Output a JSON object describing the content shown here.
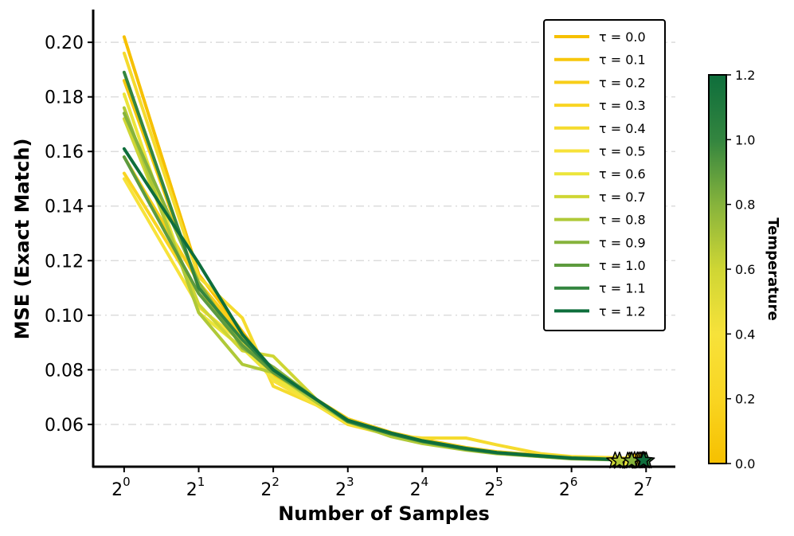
{
  "chart_data": {
    "type": "line",
    "xlabel": "Number of Samples",
    "ylabel": "MSE (Exact Match)",
    "x_scale": "log2",
    "x_ticks": [
      {
        "value": 1,
        "base": "2",
        "exp": "0"
      },
      {
        "value": 2,
        "base": "2",
        "exp": "1"
      },
      {
        "value": 4,
        "base": "2",
        "exp": "2"
      },
      {
        "value": 8,
        "base": "2",
        "exp": "3"
      },
      {
        "value": 16,
        "base": "2",
        "exp": "4"
      },
      {
        "value": 32,
        "base": "2",
        "exp": "5"
      },
      {
        "value": 64,
        "base": "2",
        "exp": "6"
      },
      {
        "value": 128,
        "base": "2",
        "exp": "7"
      }
    ],
    "xlim": [
      0.75,
      168
    ],
    "ylim": [
      0.0445,
      0.212
    ],
    "y_ticks": [
      "0.06",
      "0.08",
      "0.10",
      "0.12",
      "0.14",
      "0.16",
      "0.18",
      "0.20"
    ],
    "grid": "horizontal dashed",
    "x": [
      1,
      2,
      3,
      4,
      6,
      8,
      12,
      16,
      24,
      32,
      48,
      64,
      96,
      128
    ],
    "series": [
      {
        "name": "τ = 0.0",
        "tau": 0.0,
        "color": "#f6c000",
        "values": [
          0.202,
          0.115,
          0.094,
          0.079,
          0.069,
          0.062,
          0.057,
          0.0545,
          0.0515,
          0.05,
          0.0487,
          0.0478,
          0.0474,
          0.0472
        ],
        "best_x": 115,
        "best_y": 0.0468
      },
      {
        "name": "τ = 0.1",
        "tau": 0.1,
        "color": "#f7c70c",
        "values": [
          0.186,
          0.11,
          0.092,
          0.078,
          0.069,
          0.062,
          0.057,
          0.0543,
          0.0513,
          0.0498,
          0.0485,
          0.0477,
          0.0473,
          0.0471
        ],
        "best_x": 118,
        "best_y": 0.0467
      },
      {
        "name": "τ = 0.2",
        "tau": 0.2,
        "color": "#f8ce18",
        "values": [
          0.158,
          0.112,
          0.093,
          0.079,
          0.069,
          0.062,
          0.057,
          0.0544,
          0.0514,
          0.0499,
          0.0486,
          0.0478,
          0.0473,
          0.0471
        ],
        "best_x": 120,
        "best_y": 0.0467
      },
      {
        "name": "τ = 0.3",
        "tau": 0.3,
        "color": "#f9d522",
        "values": [
          0.152,
          0.108,
          0.091,
          0.077,
          0.068,
          0.061,
          0.0565,
          0.054,
          0.051,
          0.0496,
          0.0484,
          0.0476,
          0.0472,
          0.047
        ],
        "best_x": 122,
        "best_y": 0.0467
      },
      {
        "name": "τ = 0.4",
        "tau": 0.4,
        "color": "#f5db2e",
        "values": [
          0.196,
          0.114,
          0.099,
          0.074,
          0.067,
          0.06,
          0.056,
          0.055,
          0.055,
          0.0525,
          0.0493,
          0.0482,
          0.0478,
          0.0474
        ],
        "best_x": 124,
        "best_y": 0.0468
      },
      {
        "name": "τ = 0.5",
        "tau": 0.5,
        "color": "#f7e23a",
        "values": [
          0.15,
          0.103,
          0.09,
          0.076,
          0.067,
          0.0605,
          0.056,
          0.0535,
          0.0508,
          0.0494,
          0.0482,
          0.0475,
          0.0471,
          0.0469
        ],
        "best_x": 110,
        "best_y": 0.0466
      },
      {
        "name": "τ = 0.6",
        "tau": 0.6,
        "color": "#ece53a",
        "values": [
          0.181,
          0.101,
          0.088,
          0.077,
          0.068,
          0.061,
          0.0565,
          0.054,
          0.0511,
          0.0497,
          0.0485,
          0.0477,
          0.0472,
          0.047
        ],
        "best_x": 108,
        "best_y": 0.0466
      },
      {
        "name": "τ = 0.7",
        "tau": 0.7,
        "color": "#cfd634",
        "values": [
          0.172,
          0.104,
          0.087,
          0.085,
          0.069,
          0.0615,
          0.0565,
          0.0535,
          0.0508,
          0.0495,
          0.0484,
          0.0476,
          0.0471,
          0.0469
        ],
        "best_x": 96,
        "best_y": 0.0467
      },
      {
        "name": "τ = 0.8",
        "tau": 0.8,
        "color": "#afc938",
        "values": [
          0.176,
          0.101,
          0.082,
          0.079,
          0.068,
          0.061,
          0.0555,
          0.053,
          0.0506,
          0.0493,
          0.0482,
          0.0474,
          0.047,
          0.0468
        ],
        "best_x": 100,
        "best_y": 0.0466
      },
      {
        "name": "τ = 0.9",
        "tau": 0.9,
        "color": "#86b33c",
        "values": [
          0.174,
          0.112,
          0.088,
          0.081,
          0.069,
          0.0615,
          0.0565,
          0.0538,
          0.051,
          0.0496,
          0.0484,
          0.0476,
          0.0471,
          0.0469
        ],
        "best_x": 112,
        "best_y": 0.0467
      },
      {
        "name": "τ = 1.0",
        "tau": 1.0,
        "color": "#5d9b3e",
        "values": [
          0.158,
          0.108,
          0.089,
          0.079,
          0.069,
          0.061,
          0.0565,
          0.0537,
          0.0509,
          0.0495,
          0.0483,
          0.0475,
          0.0471,
          0.0469
        ],
        "best_x": 126,
        "best_y": 0.0467
      },
      {
        "name": "τ = 1.1",
        "tau": 1.1,
        "color": "#33853f",
        "values": [
          0.189,
          0.11,
          0.091,
          0.08,
          0.069,
          0.0612,
          0.0565,
          0.0538,
          0.051,
          0.0496,
          0.0484,
          0.0476,
          0.0471,
          0.0469
        ],
        "best_x": 128,
        "best_y": 0.0467
      },
      {
        "name": "τ = 1.2",
        "tau": 1.2,
        "color": "#0e6e3c",
        "values": [
          0.161,
          0.119,
          0.093,
          0.08,
          0.069,
          0.0615,
          0.0568,
          0.054,
          0.0512,
          0.0497,
          0.0485,
          0.0477,
          0.0472,
          0.047
        ],
        "best_x": 125,
        "best_y": 0.0468
      }
    ],
    "legend_position": "top-right",
    "colorbar": {
      "label": "Temperature",
      "min": 0.0,
      "max": 1.2,
      "ticks": [
        "0.0",
        "0.2",
        "0.4",
        "0.6",
        "0.8",
        "1.0",
        "1.2"
      ],
      "stops": [
        "#f6c000",
        "#f9d522",
        "#f7e23a",
        "#cfd634",
        "#86b33c",
        "#33853f",
        "#0e6e3c"
      ]
    }
  }
}
